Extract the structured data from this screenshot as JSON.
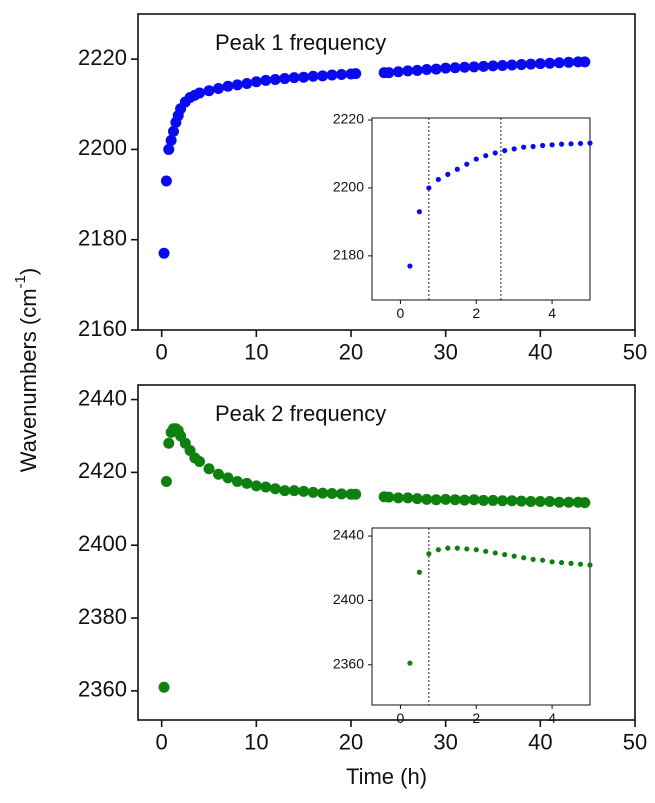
{
  "y_label": [
    "Wavenumbers (cm",
    "-1",
    ")"
  ],
  "chart_data": [
    {
      "type": "scatter",
      "title": "Peak 1 frequency",
      "x": [
        0.25,
        0.5,
        0.75,
        1,
        1.25,
        1.5,
        1.75,
        2,
        2.5,
        3,
        3.5,
        4,
        5,
        6,
        7,
        8,
        9,
        10,
        11,
        12,
        13,
        14,
        15,
        16,
        17,
        18,
        19,
        20,
        20.5,
        23.5,
        24,
        25,
        26,
        27,
        28,
        29,
        30,
        31,
        32,
        33,
        34,
        35,
        36,
        37,
        38,
        39,
        40,
        41,
        42,
        43,
        44,
        44.7
      ],
      "series": [
        {
          "color": "#0a0aef",
          "values": [
            2177,
            2193,
            2200,
            2202,
            2204,
            2206,
            2207.5,
            2209,
            2210.5,
            2211.5,
            2212,
            2212.5,
            2213,
            2213.5,
            2214,
            2214.3,
            2214.6,
            2215,
            2215.3,
            2215.5,
            2215.7,
            2215.9,
            2216,
            2216.2,
            2216.3,
            2216.5,
            2216.6,
            2216.7,
            2216.8,
            2217,
            2217,
            2217.2,
            2217.4,
            2217.5,
            2217.7,
            2217.8,
            2218,
            2218.1,
            2218.2,
            2218.3,
            2218.4,
            2218.5,
            2218.6,
            2218.7,
            2218.8,
            2218.9,
            2219,
            2219.1,
            2219.2,
            2219.3,
            2219.4,
            2219.4
          ]
        }
      ],
      "xlim": [
        -2.5,
        50
      ],
      "xticks": [
        0,
        10,
        20,
        30,
        40,
        50
      ],
      "ylim": [
        2160,
        2230
      ],
      "yticks": [
        2160,
        2180,
        2200,
        2220
      ]
    },
    {
      "type": "scatter",
      "x": [
        0.25,
        0.5,
        0.75,
        1,
        1.25,
        1.5,
        1.75,
        2,
        2.25,
        2.5,
        2.75,
        3,
        3.25,
        3.5,
        3.75,
        4,
        4.25,
        4.5,
        4.75,
        5
      ],
      "series": [
        {
          "color": "#0a0aef",
          "values": [
            2177,
            2193,
            2200,
            2202.5,
            2204,
            2205.5,
            2207,
            2208.5,
            2209.5,
            2210.3,
            2211,
            2211.5,
            2212,
            2212.2,
            2212.5,
            2212.7,
            2212.9,
            2213,
            2213.1,
            2213.2
          ]
        }
      ],
      "xlim": [
        -0.75,
        5
      ],
      "xticks": [
        0,
        2,
        4
      ],
      "ylim": [
        2167,
        2220.6
      ],
      "yticks": [
        2180,
        2200,
        2220
      ],
      "vlines": [
        0.75,
        2.65
      ]
    },
    {
      "type": "scatter",
      "title": "Peak 2 frequency",
      "x_label": "Time (h)",
      "x": [
        0.25,
        0.5,
        0.75,
        1,
        1.25,
        1.5,
        1.75,
        2,
        2.5,
        3,
        3.5,
        4,
        5,
        6,
        7,
        8,
        9,
        10,
        11,
        12,
        13,
        14,
        15,
        16,
        17,
        18,
        19,
        20,
        20.5,
        23.5,
        24,
        25,
        26,
        27,
        28,
        29,
        30,
        31,
        32,
        33,
        34,
        35,
        36,
        37,
        38,
        39,
        40,
        41,
        42,
        43,
        44,
        44.7
      ],
      "series": [
        {
          "color": "#0e8010",
          "values": [
            2361,
            2417.5,
            2428,
            2431,
            2432,
            2432,
            2431.5,
            2430,
            2428,
            2426,
            2424,
            2423,
            2421,
            2419.5,
            2418.5,
            2417.5,
            2417,
            2416.3,
            2416,
            2415.5,
            2415,
            2415,
            2414.8,
            2414.5,
            2414.3,
            2414.2,
            2414.1,
            2414,
            2414,
            2413.3,
            2413.2,
            2413,
            2413,
            2412.8,
            2412.6,
            2412.5,
            2412.6,
            2412.5,
            2412.4,
            2412.5,
            2412.3,
            2412.3,
            2412.2,
            2412.2,
            2412.1,
            2412,
            2412,
            2412,
            2411.8,
            2411.8,
            2411.8,
            2411.7
          ]
        }
      ],
      "xlim": [
        -2.5,
        50
      ],
      "xticks": [
        0,
        10,
        20,
        30,
        40,
        50
      ],
      "ylim": [
        2352,
        2444
      ],
      "yticks": [
        2360,
        2380,
        2400,
        2420,
        2440
      ]
    },
    {
      "type": "scatter",
      "x": [
        0.25,
        0.5,
        0.75,
        1,
        1.25,
        1.5,
        1.75,
        2,
        2.25,
        2.5,
        2.75,
        3,
        3.25,
        3.5,
        3.75,
        4,
        4.25,
        4.5,
        4.75,
        5
      ],
      "series": [
        {
          "color": "#0e8010",
          "values": [
            2361,
            2417.5,
            2429,
            2431.5,
            2432.5,
            2432.5,
            2432,
            2431.5,
            2430.5,
            2429.5,
            2428.5,
            2427.5,
            2426.5,
            2425.5,
            2425,
            2424,
            2423.5,
            2423,
            2422.5,
            2422
          ]
        }
      ],
      "xlim": [
        -0.75,
        5
      ],
      "xticks": [
        0,
        2,
        4
      ],
      "ylim": [
        2335,
        2445
      ],
      "yticks": [
        2360,
        2400,
        2440
      ],
      "vlines": [
        0.75
      ]
    }
  ]
}
